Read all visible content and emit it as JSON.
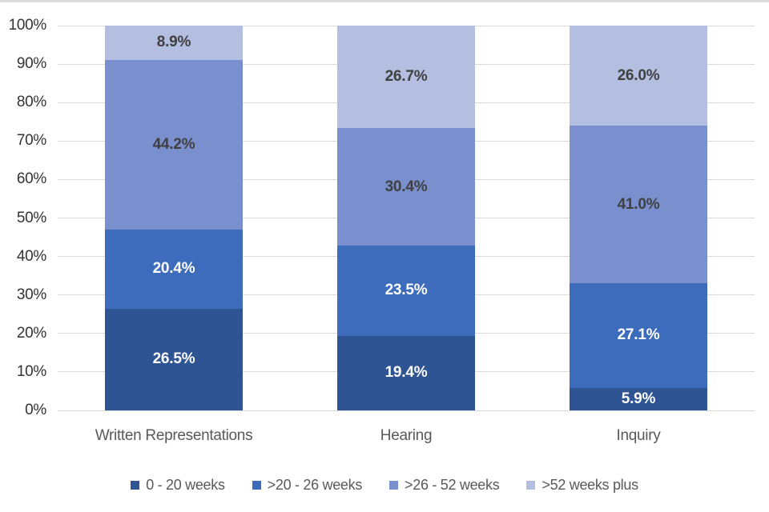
{
  "chart_data": {
    "type": "bar",
    "variant": "stacked-100-percent-column",
    "title": "",
    "categories": [
      "Written Representations",
      "Hearing",
      "Inquiry"
    ],
    "series": [
      {
        "name": "0 - 20 weeks",
        "color": "#2F5493",
        "label_color": "#FFFFFF",
        "values": [
          26.5,
          19.4,
          5.9
        ]
      },
      {
        "name": ">20 - 26 weeks",
        "color": "#3E6CBD",
        "label_color": "#FFFFFF",
        "values": [
          20.4,
          23.5,
          27.1
        ]
      },
      {
        "name": ">26 - 52 weeks",
        "color": "#7A90CE",
        "label_color": "#404040",
        "values": [
          44.2,
          30.4,
          41.0
        ]
      },
      {
        "name": ">52 weeks plus",
        "color": "#B3BEE0",
        "label_color": "#404040",
        "values": [
          8.9,
          26.7,
          26.0
        ]
      }
    ],
    "data_labels": [
      [
        "26.5%",
        "20.4%",
        "44.2%",
        "8.9%"
      ],
      [
        "19.4%",
        "23.5%",
        "30.4%",
        "26.7%"
      ],
      [
        "5.9%",
        "27.1%",
        "41.0%",
        "26.0%"
      ]
    ],
    "y_axis": {
      "min": 0,
      "max": 100,
      "step": 10,
      "ticks": [
        "0%",
        "10%",
        "20%",
        "30%",
        "40%",
        "50%",
        "60%",
        "70%",
        "80%",
        "90%",
        "100%"
      ]
    },
    "xlabel": "",
    "ylabel": "",
    "grid": true,
    "legend_position": "bottom"
  },
  "colors": {
    "background": "#FFFFFF",
    "top_border": "#DCDCDC",
    "gridline": "#D9D9D9",
    "axis_text": "#333333",
    "category_text": "#595959",
    "legend_text": "#595959"
  }
}
